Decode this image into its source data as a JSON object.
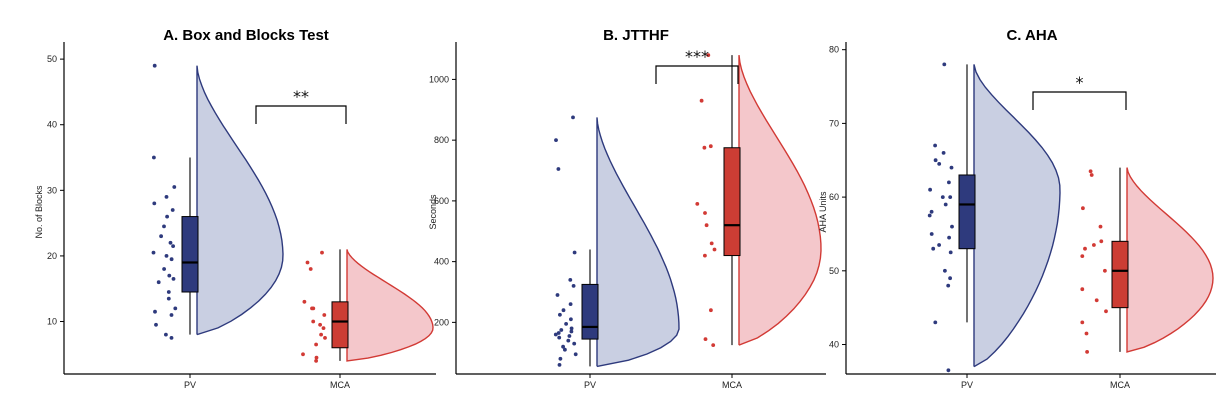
{
  "colors": {
    "pv_fill": "#c9cfe2",
    "pv_line": "#2e3a7d",
    "pv_box": "#2e3a7d",
    "mca_fill": "#f4c7cb",
    "mca_line": "#d23a35",
    "mca_box": "#cc3d34",
    "median": "#000000"
  },
  "chart_data": [
    {
      "type": "raincloud",
      "title": "A. Box and Blocks Test",
      "xlabel": "",
      "ylabel": "No. of Blocks",
      "categories": [
        "PV",
        "MCA"
      ],
      "ylim": [
        2,
        52
      ],
      "yticks": [
        10,
        20,
        30,
        40,
        50
      ],
      "significance": "**",
      "series": [
        {
          "name": "PV",
          "box": {
            "q1": 14.5,
            "median": 19,
            "q3": 26,
            "whisker_low": 8,
            "whisker_high": 35
          },
          "violin": {
            "min": 8,
            "max": 49,
            "peak": 20
          },
          "points": [
            49,
            35,
            30.5,
            29,
            28,
            27,
            26,
            24.5,
            23,
            22,
            21.5,
            20.5,
            20,
            19.5,
            18,
            17,
            16.5,
            16,
            14.5,
            13.5,
            12,
            11.5,
            11,
            9.5,
            8,
            7.5
          ]
        },
        {
          "name": "MCA",
          "box": {
            "q1": 6,
            "median": 10,
            "q3": 13,
            "whisker_low": 4,
            "whisker_high": 21
          },
          "violin": {
            "min": 4,
            "max": 21,
            "peak": 9
          },
          "points": [
            20.5,
            19,
            18,
            13,
            12,
            12,
            11,
            10,
            9.5,
            9,
            8,
            7.5,
            6.5,
            5,
            4.5,
            4
          ]
        }
      ]
    },
    {
      "type": "raincloud",
      "title": "B. JTTHF",
      "xlabel": "",
      "ylabel": "Seconds",
      "categories": [
        "PV",
        "MCA"
      ],
      "ylim": [
        30,
        1110
      ],
      "yticks": [
        200,
        400,
        600,
        800,
        1000
      ],
      "significance": "***",
      "series": [
        {
          "name": "PV",
          "box": {
            "q1": 145,
            "median": 185,
            "q3": 325,
            "whisker_low": 55,
            "whisker_high": 440
          },
          "violin": {
            "min": 55,
            "max": 875,
            "peak": 180
          },
          "points": [
            875,
            800,
            705,
            430,
            340,
            320,
            290,
            260,
            240,
            225,
            210,
            195,
            180,
            175,
            170,
            165,
            160,
            155,
            150,
            140,
            130,
            120,
            110,
            95,
            80,
            60
          ]
        },
        {
          "name": "MCA",
          "box": {
            "q1": 420,
            "median": 520,
            "q3": 775,
            "whisker_low": 125,
            "whisker_high": 1080
          },
          "violin": {
            "min": 125,
            "max": 1080,
            "peak": 440
          },
          "points": [
            1080,
            930,
            780,
            775,
            590,
            560,
            520,
            460,
            440,
            420,
            240,
            145,
            125
          ]
        }
      ]
    },
    {
      "type": "raincloud",
      "title": "C. AHA",
      "xlabel": "",
      "ylabel": "AHA Units",
      "categories": [
        "PV",
        "MCA"
      ],
      "ylim": [
        36,
        80.5
      ],
      "yticks": [
        40,
        50,
        60,
        70,
        80
      ],
      "significance": "*",
      "series": [
        {
          "name": "PV",
          "box": {
            "q1": 53,
            "median": 59,
            "q3": 63,
            "whisker_low": 43,
            "whisker_high": 78
          },
          "violin": {
            "min": 37,
            "max": 78,
            "peak": 61
          },
          "points": [
            78,
            67,
            66,
            65,
            64.5,
            64,
            62,
            61,
            60,
            60,
            59,
            58,
            57.5,
            56,
            55,
            54.5,
            53.5,
            53,
            52.5,
            50,
            49,
            48,
            43,
            36.5
          ]
        },
        {
          "name": "MCA",
          "box": {
            "q1": 45,
            "median": 50,
            "q3": 54,
            "whisker_low": 39,
            "whisker_high": 64
          },
          "violin": {
            "min": 39,
            "max": 64,
            "peak": 49
          },
          "points": [
            63.5,
            63,
            58.5,
            56,
            54,
            53.5,
            53,
            52,
            50,
            47.5,
            46,
            44.5,
            43,
            41.5,
            39
          ]
        }
      ]
    }
  ]
}
